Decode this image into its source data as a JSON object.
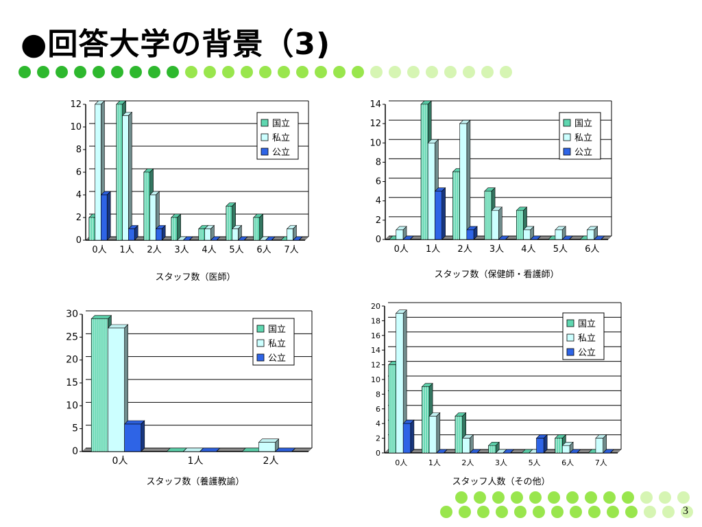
{
  "slide": {
    "title": "●回答大学の背景（3)",
    "page_number": "3"
  },
  "colors": {
    "dot_dark": "#2eb82e",
    "dot_mid": "#99e64d",
    "dot_light": "#d6f5b3",
    "national": "#5fd7b0",
    "private": "#ccffff",
    "public": "#2e64e6"
  },
  "legend": [
    "国立",
    "私立",
    "公立"
  ],
  "chart_data": [
    {
      "type": "bar",
      "categories": [
        "0人",
        "1人",
        "2人",
        "3人",
        "4人",
        "5人",
        "6人",
        "7人"
      ],
      "series": [
        {
          "name": "国立",
          "values": [
            2,
            12,
            6,
            2,
            1,
            3,
            2,
            0
          ]
        },
        {
          "name": "私立",
          "values": [
            12,
            11,
            4,
            0,
            1,
            1,
            0,
            1
          ]
        },
        {
          "name": "公立",
          "values": [
            4,
            1,
            1,
            0,
            0,
            0,
            0,
            0
          ]
        }
      ],
      "xlabel": "スタッフ数（医師）",
      "ylim": [
        0,
        12
      ],
      "yticks": [
        0,
        2,
        4,
        6,
        8,
        10,
        12
      ],
      "legend_position": "top-right",
      "grid": true
    },
    {
      "type": "bar",
      "categories": [
        "0人",
        "1人",
        "2人",
        "3人",
        "4人",
        "5人",
        "6人"
      ],
      "series": [
        {
          "name": "国立",
          "values": [
            0,
            14,
            7,
            5,
            3,
            0,
            0
          ]
        },
        {
          "name": "私立",
          "values": [
            1,
            10,
            12,
            3,
            1,
            1,
            1
          ]
        },
        {
          "name": "公立",
          "values": [
            0,
            5,
            1,
            0,
            0,
            0,
            0
          ]
        }
      ],
      "xlabel": "スタッフ数（保健師・看護師）",
      "ylim": [
        0,
        14
      ],
      "yticks": [
        0,
        2,
        4,
        6,
        8,
        10,
        12,
        14
      ],
      "legend_position": "top-right",
      "grid": true
    },
    {
      "type": "bar",
      "categories": [
        "0人",
        "1人",
        "2人"
      ],
      "series": [
        {
          "name": "国立",
          "values": [
            29,
            0,
            0
          ]
        },
        {
          "name": "私立",
          "values": [
            27,
            0,
            2
          ]
        },
        {
          "name": "公立",
          "values": [
            6,
            0,
            0
          ]
        }
      ],
      "xlabel": "スタッフ数（養護教諭）",
      "ylim": [
        0,
        30
      ],
      "yticks": [
        0,
        5,
        10,
        15,
        20,
        25,
        30
      ],
      "legend_position": "top-right",
      "grid": true
    },
    {
      "type": "bar",
      "categories": [
        "0人",
        "1人",
        "2人",
        "3人",
        "5人",
        "6人",
        "7人"
      ],
      "series": [
        {
          "name": "国立",
          "values": [
            12,
            9,
            5,
            1,
            0,
            2,
            0
          ]
        },
        {
          "name": "私立",
          "values": [
            19,
            5,
            2,
            0,
            0,
            1,
            2
          ]
        },
        {
          "name": "公立",
          "values": [
            4,
            0,
            0,
            0,
            2,
            0,
            0
          ]
        }
      ],
      "xlabel": "スタッフ人数（その他）",
      "ylim": [
        0,
        20
      ],
      "yticks": [
        0,
        2,
        4,
        6,
        8,
        10,
        12,
        14,
        16,
        18,
        20
      ],
      "legend_position": "top-right",
      "grid": true
    }
  ]
}
